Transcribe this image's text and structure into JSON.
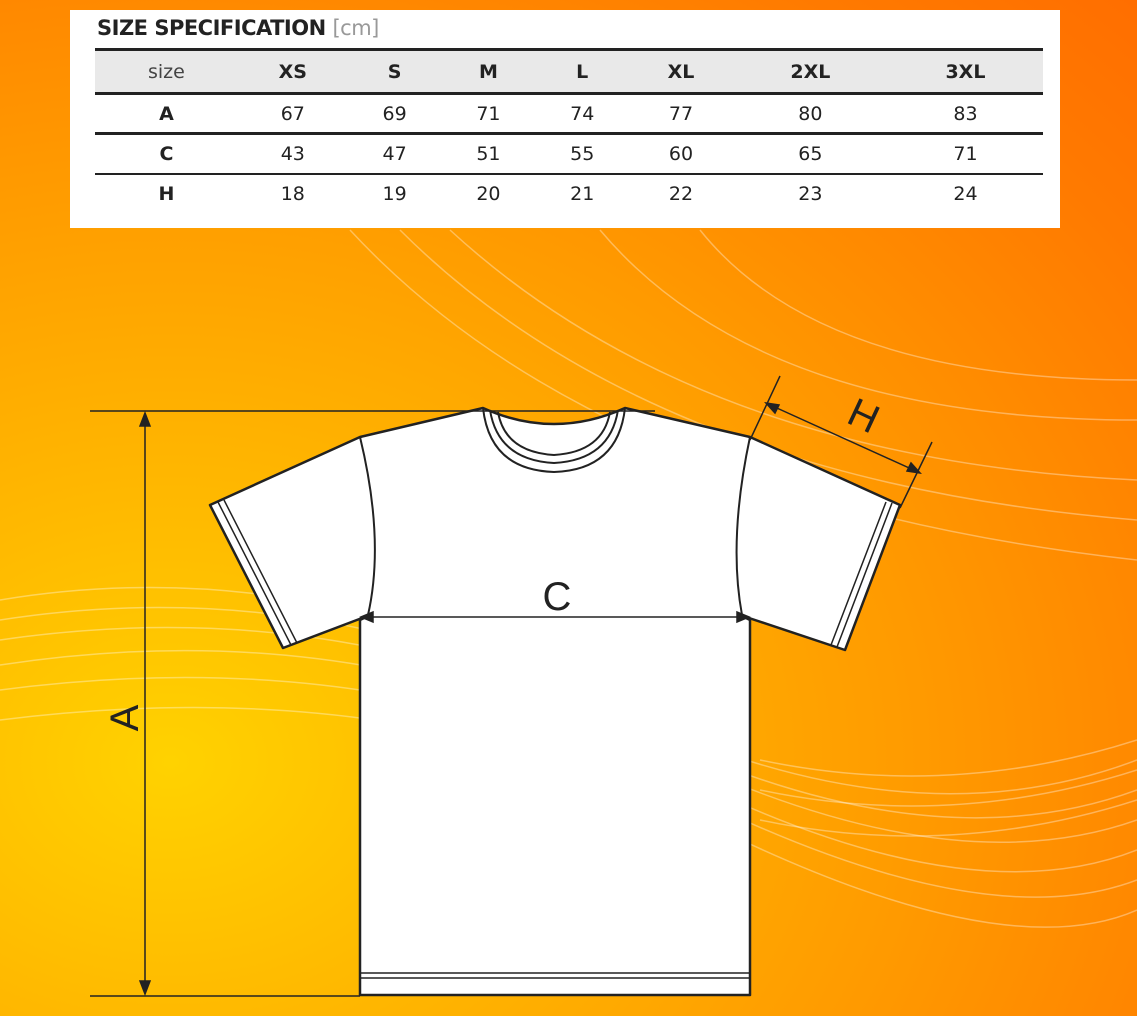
{
  "spec": {
    "title": "SIZE SPECIFICATION",
    "unit": "[cm]",
    "header": [
      "size",
      "XS",
      "S",
      "M",
      "L",
      "XL",
      "2XL",
      "3XL"
    ],
    "rows": [
      [
        "A",
        "67",
        "69",
        "71",
        "74",
        "77",
        "80",
        "83"
      ],
      [
        "C",
        "43",
        "47",
        "51",
        "55",
        "60",
        "65",
        "71"
      ],
      [
        "H",
        "18",
        "19",
        "20",
        "21",
        "22",
        "23",
        "24"
      ]
    ]
  },
  "diagram": {
    "label_a": "A",
    "label_c": "C",
    "label_h": "H"
  },
  "colors": {
    "background": "#ff9a00",
    "table_header": "#e9e9e9"
  }
}
